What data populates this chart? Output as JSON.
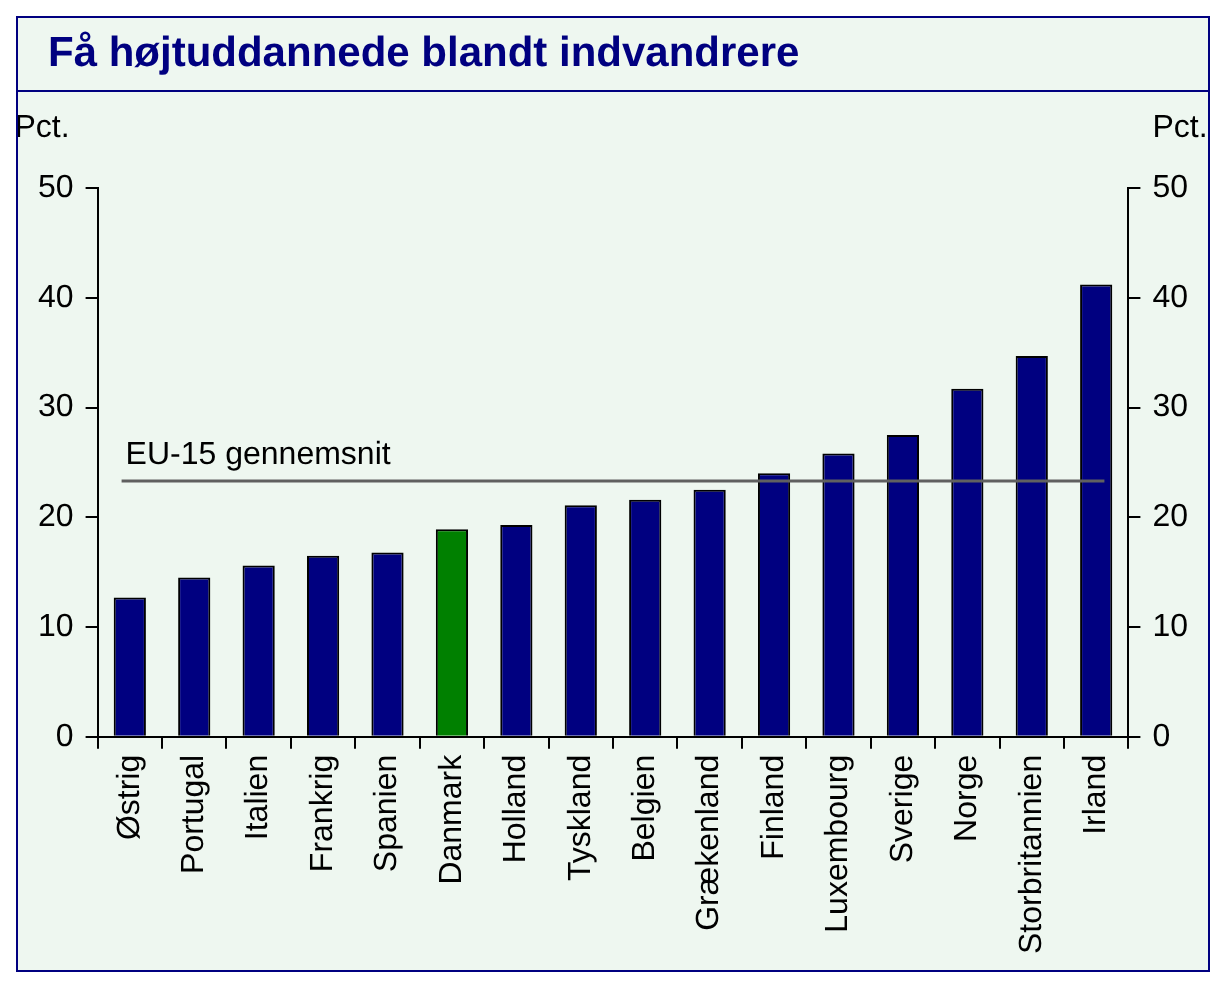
{
  "chart_data": {
    "type": "bar",
    "title": "Få højtuddannede blandt indvandrere",
    "ylabel": "Pct.",
    "y2label": "Pct.",
    "categories": [
      "Østrig",
      "Portugal",
      "Italien",
      "Frankrig",
      "Spanien",
      "Danmark",
      "Holland",
      "Tyskland",
      "Belgien",
      "Grækenland",
      "Finland",
      "Luxembourg",
      "Sverige",
      "Norge",
      "Storbritannien",
      "Irland"
    ],
    "values": [
      12.7,
      14.5,
      15.6,
      16.5,
      16.8,
      18.9,
      19.3,
      21.1,
      21.6,
      22.5,
      24,
      25.8,
      27.5,
      31.7,
      34.7,
      41.2
    ],
    "colors": [
      "#000080",
      "#000080",
      "#000080",
      "#000080",
      "#000080",
      "#008000",
      "#000080",
      "#000080",
      "#000080",
      "#000080",
      "#000080",
      "#000080",
      "#000080",
      "#000080",
      "#000080",
      "#000080"
    ],
    "ylim": [
      0,
      50
    ],
    "yticks": [
      0,
      10,
      20,
      30,
      40,
      50
    ],
    "y2lim": [
      0,
      50
    ],
    "y2ticks": [
      0,
      10,
      20,
      30,
      40,
      50
    ],
    "ref_lines": [
      {
        "axis": "y",
        "value": 23.3,
        "label": "EU-15 gennemsnit",
        "color": "#606060"
      }
    ],
    "grid": false,
    "legend": false
  }
}
